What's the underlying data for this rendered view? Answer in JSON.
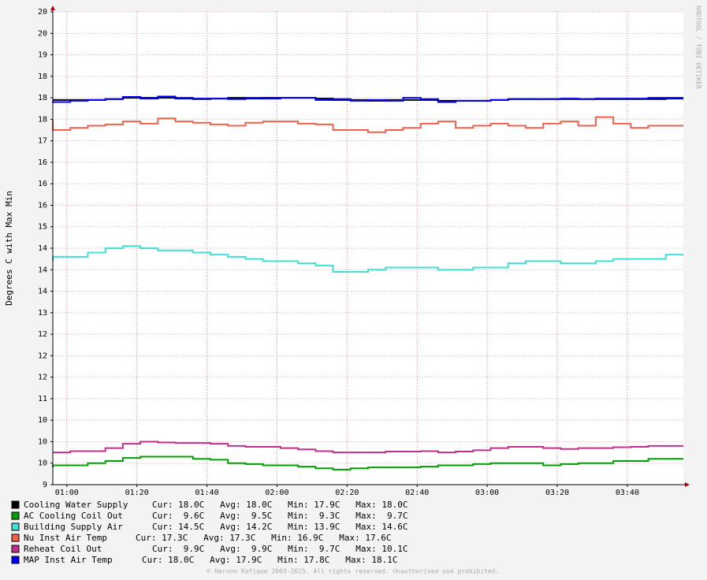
{
  "chart_data": {
    "type": "line",
    "step": true,
    "y_label": "Degrees C with Max Min",
    "side_label": "RRDTOOL / TOBI OETIKER",
    "footer": "© Haroon Rafique 2003-2025. All rights reserved. Unauthorised use prohibited.",
    "grid": true,
    "x": [
      "00:56",
      "01:01",
      "01:06",
      "01:11",
      "01:16",
      "01:21",
      "01:26",
      "01:31",
      "01:36",
      "01:41",
      "01:46",
      "01:51",
      "01:56",
      "02:01",
      "02:06",
      "02:11",
      "02:16",
      "02:21",
      "02:26",
      "02:31",
      "02:36",
      "02:41",
      "02:46",
      "02:51",
      "02:56",
      "03:01",
      "03:06",
      "03:11",
      "03:16",
      "03:21",
      "03:26",
      "03:31",
      "03:36",
      "03:41",
      "03:46",
      "03:51",
      "03:56"
    ],
    "xlim": [
      "00:56",
      "03:56"
    ],
    "xticks": [
      "01:00",
      "01:20",
      "01:40",
      "02:00",
      "02:20",
      "02:40",
      "03:00",
      "03:20",
      "03:40"
    ],
    "ylim": [
      9,
      20
    ],
    "yticks": [
      9,
      {
        "value": 9.5,
        "label": "10"
      },
      10,
      {
        "value": 10.5,
        "label": "10"
      },
      11,
      {
        "value": 11.5,
        "label": "12"
      },
      12,
      {
        "value": 12.5,
        "label": "12"
      },
      13,
      {
        "value": 13.5,
        "label": "14"
      },
      14,
      {
        "value": 14.5,
        "label": "14"
      },
      15,
      {
        "value": 15.5,
        "label": "16"
      },
      16,
      {
        "value": 16.5,
        "label": "16"
      },
      17,
      {
        "value": 17.5,
        "label": "18"
      },
      18,
      {
        "value": 18.5,
        "label": "18"
      },
      19,
      {
        "value": 19.5,
        "label": "20"
      },
      20
    ],
    "series": [
      {
        "name": "Cooling Water Supply",
        "color": "#000000",
        "legend_stats": "Cur: 18.0C   Avg: 18.0C   Min: 17.9C   Max: 18.0C",
        "values": [
          17.95,
          17.95,
          17.95,
          17.95,
          17.97,
          18.0,
          18.0,
          18.0,
          17.98,
          17.97,
          17.98,
          18.0,
          17.98,
          18.0,
          18.0,
          18.0,
          17.98,
          17.95,
          17.95,
          17.93,
          17.95,
          17.95,
          17.95,
          17.93,
          17.93,
          17.93,
          17.95,
          17.97,
          17.97,
          17.97,
          17.97,
          17.97,
          17.97,
          17.97,
          17.97,
          17.97,
          17.98
        ]
      },
      {
        "name": "AC Cooling Coil Out",
        "color": "#00a000",
        "legend_stats": "Cur:  9.6C   Avg:  9.5C   Min:  9.3C   Max:  9.7C",
        "values": [
          9.4,
          9.45,
          9.45,
          9.5,
          9.55,
          9.62,
          9.65,
          9.65,
          9.65,
          9.6,
          9.58,
          9.5,
          9.48,
          9.45,
          9.45,
          9.42,
          9.38,
          9.35,
          9.38,
          9.4,
          9.4,
          9.4,
          9.42,
          9.45,
          9.45,
          9.48,
          9.5,
          9.5,
          9.5,
          9.45,
          9.48,
          9.5,
          9.5,
          9.55,
          9.55,
          9.6,
          9.6
        ]
      },
      {
        "name": "Building Supply Air",
        "color": "#40e0d0",
        "legend_stats": "Cur: 14.5C   Avg: 14.2C   Min: 13.9C   Max: 14.6C",
        "values": [
          14.2,
          14.3,
          14.3,
          14.4,
          14.5,
          14.55,
          14.5,
          14.45,
          14.45,
          14.4,
          14.35,
          14.3,
          14.25,
          14.2,
          14.2,
          14.15,
          14.1,
          13.95,
          13.95,
          14.0,
          14.05,
          14.05,
          14.05,
          14.0,
          14.0,
          14.05,
          14.05,
          14.15,
          14.2,
          14.2,
          14.15,
          14.15,
          14.2,
          14.25,
          14.25,
          14.25,
          14.35
        ]
      },
      {
        "name": "Nu Inst Air Temp",
        "color": "#f0604a",
        "legend_stats": "Cur: 17.3C   Avg: 17.3C   Min: 16.9C   Max: 17.6C",
        "values": [
          17.48,
          17.25,
          17.3,
          17.35,
          17.38,
          17.45,
          17.4,
          17.52,
          17.45,
          17.42,
          17.38,
          17.35,
          17.42,
          17.45,
          17.45,
          17.4,
          17.38,
          17.25,
          17.25,
          17.2,
          17.25,
          17.3,
          17.4,
          17.45,
          17.3,
          17.35,
          17.4,
          17.35,
          17.3,
          17.4,
          17.45,
          17.35,
          17.55,
          17.4,
          17.3,
          17.35,
          17.35
        ]
      },
      {
        "name": "Reheat Coil Out",
        "color": "#c0308a",
        "legend_stats": "Cur:  9.9C   Avg:  9.9C   Min:  9.7C   Max: 10.1C",
        "values": [
          9.75,
          9.75,
          9.78,
          9.78,
          9.85,
          9.95,
          10.0,
          9.98,
          9.97,
          9.97,
          9.95,
          9.9,
          9.88,
          9.88,
          9.85,
          9.82,
          9.78,
          9.75,
          9.75,
          9.75,
          9.77,
          9.77,
          9.78,
          9.75,
          9.77,
          9.8,
          9.85,
          9.88,
          9.88,
          9.85,
          9.83,
          9.85,
          9.85,
          9.87,
          9.88,
          9.9,
          9.9
        ]
      },
      {
        "name": "MAP Inst Air Temp",
        "color": "#0000ff",
        "legend_stats": "Cur: 18.0C   Avg: 17.9C   Min: 17.8C   Max: 18.1C",
        "values": [
          17.88,
          17.9,
          17.93,
          17.95,
          17.97,
          18.02,
          17.98,
          18.03,
          18.0,
          17.98,
          17.98,
          17.97,
          18.0,
          17.98,
          18.0,
          18.0,
          17.95,
          17.97,
          17.93,
          17.95,
          17.93,
          18.0,
          17.97,
          17.9,
          17.93,
          17.93,
          17.95,
          17.97,
          17.97,
          17.97,
          17.98,
          17.97,
          17.98,
          17.98,
          17.98,
          18.0,
          18.0
        ]
      }
    ]
  }
}
